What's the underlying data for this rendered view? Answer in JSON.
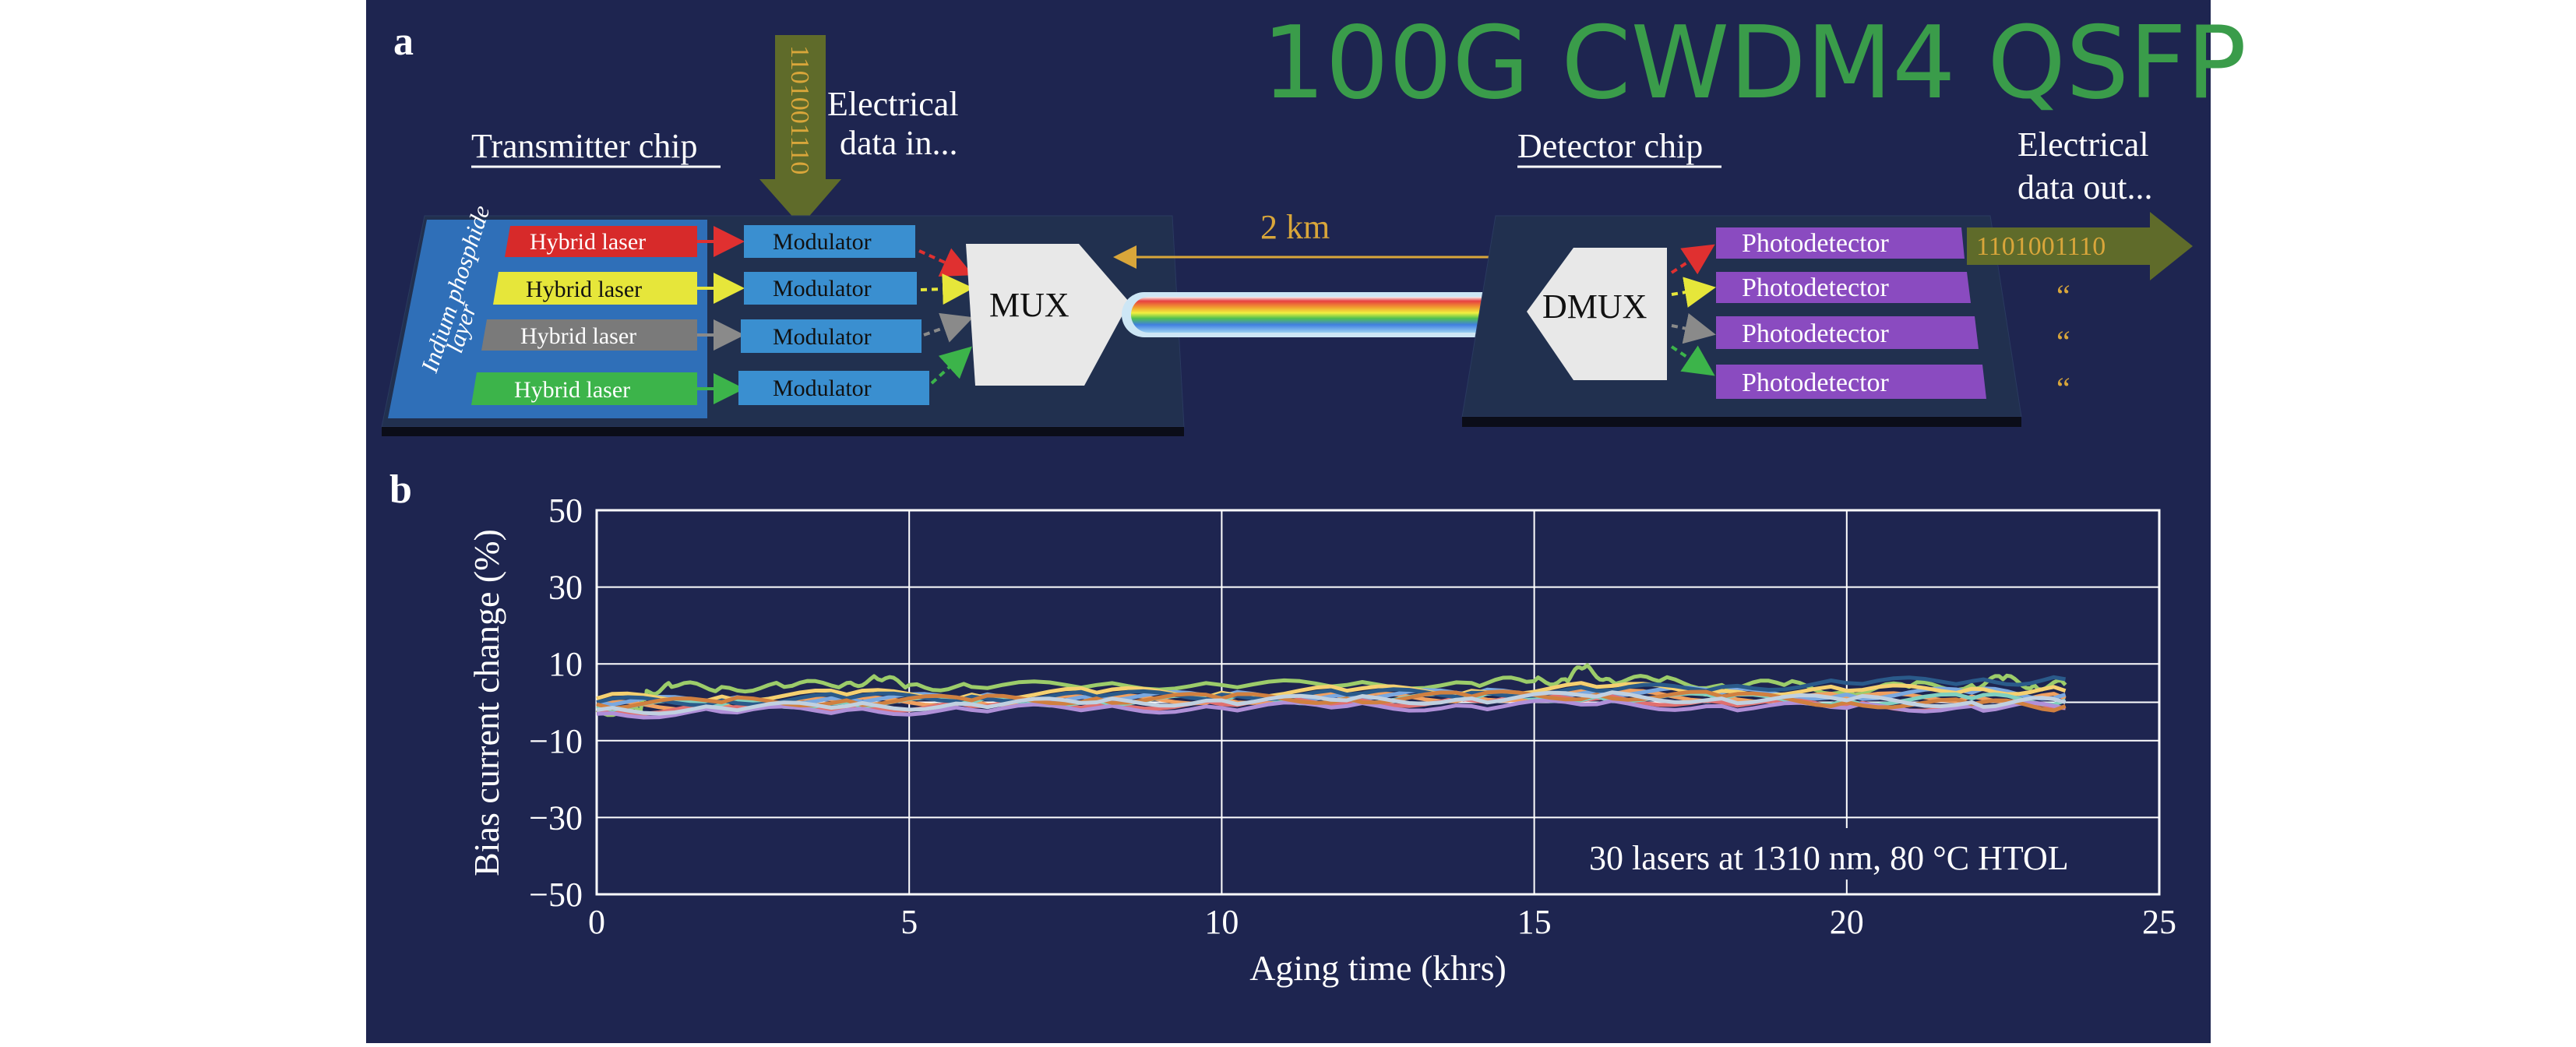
{
  "colors": {
    "panel_background": "#1e2550",
    "title_green": "#3a9c4a",
    "chip_blue": "#2f6fb8",
    "modulator": "#3a8fd0",
    "photodetector": "#8a4bc0",
    "gold_text": "#d9a63a",
    "arrow_olive": "#5f6b2a",
    "hybrid_laser_colors": [
      "#d72a2a",
      "#e6e63a",
      "#7a7a7a",
      "#3cb44a"
    ]
  },
  "panel_a": {
    "label": "a",
    "title": "100G CWDM4 QSFP",
    "transmitter_label": "Transmitter chip",
    "detector_label": "Detector chip",
    "electrical_in": [
      "Electrical",
      "data in..."
    ],
    "electrical_out": [
      "Electrical",
      "data out..."
    ],
    "input_bits": "1101001110",
    "output_bits": "1101001110",
    "inp_layer": [
      "Indium phosphide",
      "layer"
    ],
    "lasers": [
      "Hybrid laser",
      "Hybrid laser",
      "Hybrid laser",
      "Hybrid laser"
    ],
    "modulators": [
      "Modulator",
      "Modulator",
      "Modulator",
      "Modulator"
    ],
    "mux": "MUX",
    "dmux": "DMUX",
    "fiber_length": "2 km",
    "photodetectors": [
      "Photodetector",
      "Photodetector",
      "Photodetector",
      "Photodetector"
    ],
    "ditto_marks": [
      "“",
      "“",
      "“"
    ]
  },
  "panel_b": {
    "label": "b",
    "annotation": "30 lasers at 1310 nm, 80 °C HTOL"
  },
  "chart_data": {
    "type": "line",
    "title": "",
    "xlabel": "Aging time (khrs)",
    "ylabel": "Bias current change (%)",
    "xlim": [
      0,
      25
    ],
    "ylim": [
      -50,
      50
    ],
    "xticks": [
      0,
      5,
      10,
      15,
      20,
      25
    ],
    "yticks": [
      -50,
      -30,
      -10,
      10,
      30,
      50
    ],
    "ytick_labels": [
      "−50",
      "−30",
      "−10",
      "10",
      "30",
      "50"
    ],
    "grid": true,
    "note": "30 laser traces spanning 0–23.5 khrs, all within about −4% to +9% change",
    "series": [
      {
        "color": "#9ccc6a",
        "x": [
          0,
          0.7,
          0.8,
          1.2,
          2,
          3,
          4,
          4.5,
          5,
          6,
          8,
          10,
          12,
          14,
          15,
          15.5,
          15.8,
          16.2,
          17,
          18,
          19,
          20,
          21,
          22,
          22.5,
          23,
          23.5
        ],
        "y": [
          -2,
          -2.5,
          3,
          4,
          4,
          4,
          5,
          6,
          4.5,
          4,
          4.5,
          4.5,
          4.5,
          5,
          5.5,
          6,
          9,
          6,
          5.5,
          4.5,
          4.5,
          3,
          4,
          4.5,
          6,
          4.5,
          4.5
        ]
      },
      {
        "color": "#f0a060",
        "x": [
          0,
          2,
          4,
          6,
          8,
          10,
          12,
          14,
          16,
          18,
          20,
          22,
          23.5
        ],
        "y": [
          -1,
          -0.5,
          0,
          0.5,
          0.5,
          1,
          1,
          1.5,
          2,
          1.5,
          1,
          1.5,
          1
        ]
      },
      {
        "color": "#7aa8e0",
        "x": [
          0,
          2,
          4,
          6,
          8,
          10,
          12,
          14,
          16,
          18,
          20,
          22,
          23.5
        ],
        "y": [
          0,
          0.5,
          1,
          1,
          1.5,
          1.5,
          2,
          2,
          3,
          2.5,
          2,
          2.5,
          2
        ]
      },
      {
        "color": "#e07070",
        "x": [
          0,
          2,
          4,
          6,
          8,
          10,
          12,
          14,
          16,
          18,
          20,
          22,
          23.5
        ],
        "y": [
          -2,
          -1.5,
          -1,
          -1,
          -0.5,
          -0.5,
          0,
          0.5,
          1,
          0,
          -1,
          -1,
          -1.5
        ]
      },
      {
        "color": "#f5d070",
        "x": [
          0,
          2,
          4,
          6,
          8,
          10,
          12,
          14,
          16,
          18,
          20,
          22,
          23.5
        ],
        "y": [
          1,
          1.5,
          2,
          2,
          2.5,
          2.5,
          3,
          3,
          4,
          3,
          3,
          3.5,
          3
        ]
      },
      {
        "color": "#80d0c0",
        "x": [
          0,
          2,
          4,
          6,
          8,
          10,
          12,
          14,
          16,
          18,
          20,
          22,
          23.5
        ],
        "y": [
          -1,
          -0.5,
          0,
          0,
          0.5,
          0.5,
          1,
          1,
          1.5,
          1,
          0.5,
          1,
          0.5
        ]
      },
      {
        "color": "#b090d8",
        "x": [
          0,
          2,
          4,
          6,
          8,
          10,
          12,
          14,
          16,
          18,
          20,
          22,
          23.5
        ],
        "y": [
          -3,
          -2.5,
          -2,
          -2,
          -1.5,
          -1.5,
          -1,
          -1,
          -0.5,
          -1,
          -1.5,
          -1,
          -1.5
        ]
      },
      {
        "color": "#2a5a8a",
        "x": [
          0,
          2,
          4,
          6,
          8,
          10,
          12,
          14,
          16,
          18,
          20,
          22,
          23.5
        ],
        "y": [
          0,
          0.5,
          1,
          1.5,
          1.5,
          2,
          2,
          2.5,
          3,
          4,
          5,
          5.5,
          6
        ]
      },
      {
        "color": "#d08040",
        "x": [
          0,
          2,
          4,
          6,
          8,
          10,
          12,
          14,
          16,
          18,
          20,
          22,
          23.5
        ],
        "y": [
          -0.5,
          0,
          0.5,
          0.5,
          1,
          1,
          1,
          1.5,
          2,
          1.5,
          0,
          -0.5,
          -1
        ]
      },
      {
        "color": "#c0d0e0",
        "x": [
          0,
          2,
          4,
          6,
          8,
          10,
          12,
          14,
          16,
          18,
          20,
          22,
          23.5
        ],
        "y": [
          -2,
          -1.5,
          -1,
          -0.5,
          0,
          0.5,
          0.5,
          1,
          1.5,
          1,
          0.5,
          0,
          0
        ]
      }
    ]
  }
}
